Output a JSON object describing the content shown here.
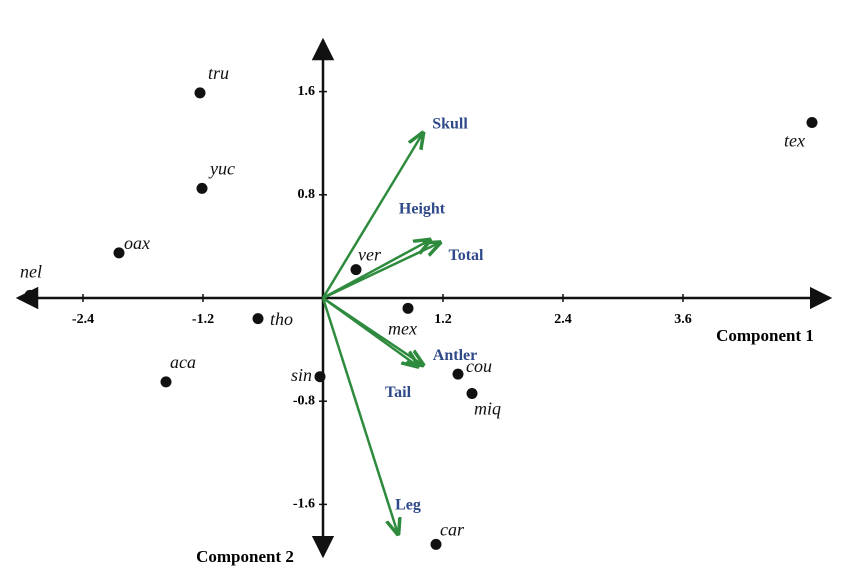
{
  "chart_data": {
    "type": "biplot",
    "xlabel": "Component 1",
    "ylabel": "Component 2",
    "xlim": [
      -3.05,
      5.07
    ],
    "ylim": [
      -2.0,
      2.0
    ],
    "xticks": [
      -2.4,
      -1.2,
      1.2,
      2.4,
      3.6
    ],
    "yticks": [
      1.6,
      0.8,
      -0.8,
      -1.6
    ],
    "points": {
      "color": "#111111",
      "labels": [
        "tru",
        "yuc",
        "oax",
        "nel",
        "tho",
        "aca",
        "sin",
        "ver",
        "mex",
        "cou",
        "miq",
        "car",
        "tex"
      ],
      "x": [
        -1.23,
        -1.21,
        -2.04,
        -2.93,
        -0.65,
        -1.57,
        -0.03,
        0.33,
        0.85,
        1.35,
        1.49,
        1.13,
        4.89
      ],
      "y": [
        1.59,
        0.85,
        0.35,
        0.02,
        -0.16,
        -0.65,
        -0.61,
        0.22,
        -0.08,
        -0.59,
        -0.74,
        -1.91,
        1.36
      ]
    },
    "vectors": {
      "color": "#2e8b3e",
      "label_color": "#2f4a8a",
      "labels": [
        "Skull",
        "Height",
        "Total",
        "Antler",
        "Tail",
        "Leg"
      ],
      "x": [
        1.0,
        1.07,
        1.17,
        1.0,
        0.95,
        0.75
      ],
      "y": [
        1.28,
        0.45,
        0.43,
        -0.52,
        -0.53,
        -1.83
      ]
    }
  }
}
